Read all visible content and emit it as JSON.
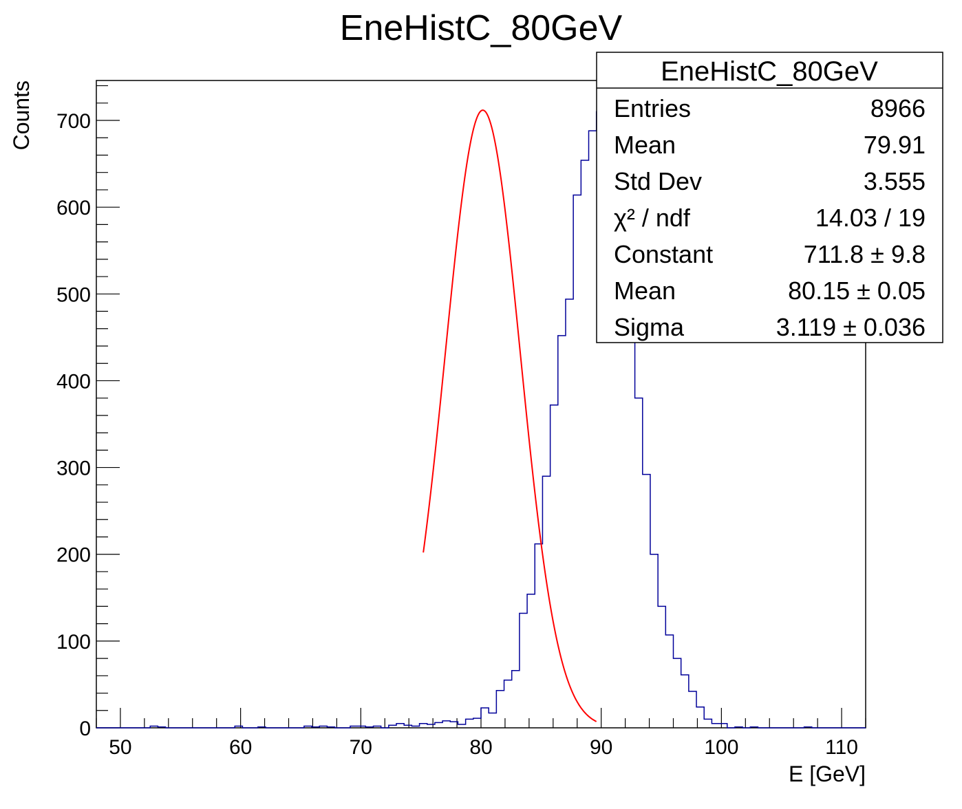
{
  "chart_data": {
    "type": "histogram",
    "title": "EneHistC_80GeV",
    "xlabel": "E [GeV]",
    "ylabel": "Counts",
    "xlim": [
      48,
      112
    ],
    "ylim": [
      0,
      746
    ],
    "x_ticks": [
      50,
      60,
      70,
      80,
      90,
      100,
      110
    ],
    "y_ticks": [
      0,
      100,
      200,
      300,
      400,
      500,
      600,
      700
    ],
    "bin_width": 0.64,
    "bin_start": 48,
    "counts": [
      0,
      0,
      0,
      0,
      0,
      0,
      0,
      2,
      1,
      0,
      0,
      0,
      0,
      0,
      0,
      0,
      0,
      0,
      2,
      0,
      0,
      1,
      0,
      0,
      0,
      0,
      0,
      2,
      1,
      2,
      1,
      0,
      0,
      2,
      2,
      1,
      2,
      0,
      3,
      5,
      3,
      2,
      5,
      4,
      6,
      8,
      7,
      4,
      10,
      11,
      23,
      17,
      43,
      55,
      66,
      132,
      154,
      212,
      290,
      372,
      452,
      494,
      614,
      654,
      688,
      710,
      694,
      650,
      570,
      515,
      380,
      292,
      200,
      140,
      107,
      80,
      61,
      42,
      24,
      10,
      5,
      5,
      0,
      1,
      0,
      1,
      0,
      0,
      0,
      0,
      0,
      0,
      1,
      0,
      0,
      0,
      0,
      0,
      0,
      0
    ],
    "fit": {
      "function": "gaus",
      "constant": 711.8,
      "mean": 80.15,
      "sigma": 3.119,
      "range": [
        75.2,
        89.6
      ],
      "color": "#ff0000"
    },
    "histogram_color": "#000099",
    "stats": {
      "title": "EneHistC_80GeV",
      "rows": [
        {
          "label": "Entries",
          "value": "8966"
        },
        {
          "label": "Mean",
          "value": "79.91"
        },
        {
          "label": "Std Dev",
          "value": "3.555"
        },
        {
          "label": "χ² / ndf",
          "value": "14.03 / 19"
        },
        {
          "label": "Constant",
          "value": "711.8 ± 9.8"
        },
        {
          "label": "Mean",
          "value": "80.15 ± 0.05"
        },
        {
          "label": "Sigma",
          "value": "3.119 ± 0.036"
        }
      ]
    }
  }
}
